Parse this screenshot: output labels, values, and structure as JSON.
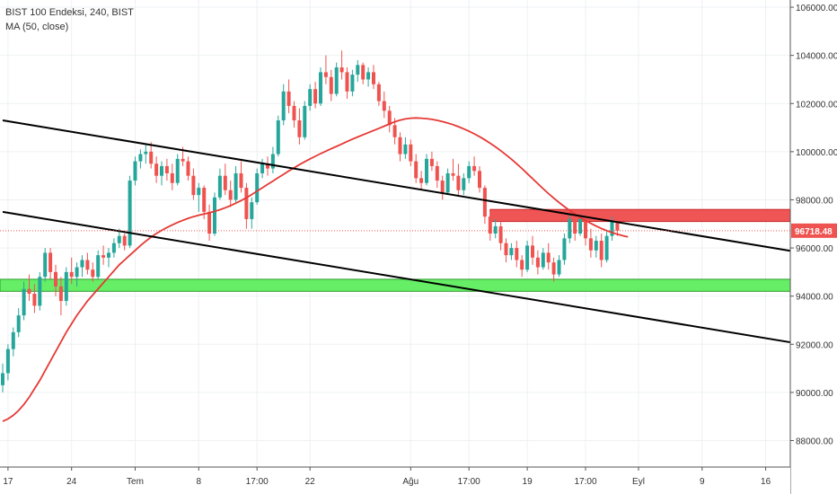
{
  "legend": {
    "symbol_line": "BIST 100 Endeksi, 240, BIST",
    "indicator_line": "MA (50, close)"
  },
  "colors": {
    "up": "#26a69a",
    "down": "#ef5350",
    "ma": "#e53935",
    "grid": "#eef0f3",
    "axis_text": "#333333",
    "price_label_bg": "#ef5350",
    "support_fill": "#66ee66",
    "resistance_fill": "#f05555",
    "trendline": "#000000"
  },
  "chart_data": {
    "type": "candlestick",
    "title": "BIST 100 Endeksi, 240, BIST",
    "y_axis": {
      "range": [
        86900,
        106300
      ],
      "ticks": [
        88000,
        90000,
        92000,
        94000,
        96000,
        98000,
        100000,
        102000,
        104000,
        106000
      ],
      "tick_labels": [
        "88000.00",
        "90000.00",
        "92000.00",
        "94000.00",
        "96000.00",
        "98000.00",
        "100000.00",
        "102000.00",
        "104000.00",
        "106000.00"
      ]
    },
    "x_axis": {
      "range": [
        0,
        118
      ],
      "ticks": [
        {
          "i": 1,
          "label": "17"
        },
        {
          "i": 13,
          "label": "24"
        },
        {
          "i": 25,
          "label": "Tem"
        },
        {
          "i": 37,
          "label": "8"
        },
        {
          "i": 48,
          "label": "17:00"
        },
        {
          "i": 58,
          "label": "22"
        },
        {
          "i": 77,
          "label": "Ağu"
        },
        {
          "i": 88,
          "label": "17:00"
        },
        {
          "i": 99,
          "label": "19"
        },
        {
          "i": 110,
          "label": "17:00"
        },
        {
          "i": 120,
          "label": "Eyl"
        },
        {
          "i": 132,
          "label": "9"
        },
        {
          "i": 144,
          "label": "16"
        }
      ]
    },
    "last_price": {
      "value": 96718.48,
      "label": "96718.48"
    },
    "ohlc": [
      [
        90300,
        91200,
        90000,
        90800
      ],
      [
        90800,
        92000,
        90500,
        91800
      ],
      [
        91800,
        92700,
        91500,
        92500
      ],
      [
        92500,
        93500,
        92300,
        93200
      ],
      [
        93200,
        94600,
        93000,
        94300
      ],
      [
        94300,
        94900,
        93800,
        94100
      ],
      [
        94100,
        94500,
        93300,
        93600
      ],
      [
        93600,
        95000,
        93400,
        94800
      ],
      [
        94800,
        96000,
        94600,
        95800
      ],
      [
        95800,
        96000,
        94700,
        95000
      ],
      [
        95000,
        95300,
        94000,
        94400
      ],
      [
        94400,
        94800,
        93200,
        93800
      ],
      [
        93800,
        95200,
        93600,
        95000
      ],
      [
        95000,
        95600,
        94500,
        94800
      ],
      [
        94800,
        95400,
        94400,
        95200
      ],
      [
        95200,
        95700,
        94800,
        95500
      ],
      [
        95500,
        95800,
        94900,
        95100
      ],
      [
        95100,
        95400,
        94600,
        94800
      ],
      [
        94800,
        95900,
        94700,
        95700
      ],
      [
        95700,
        96100,
        95300,
        95600
      ],
      [
        95600,
        96000,
        95200,
        95800
      ],
      [
        95800,
        96400,
        95600,
        96200
      ],
      [
        96200,
        96800,
        96000,
        96500
      ],
      [
        96500,
        96600,
        95900,
        96100
      ],
      [
        96100,
        99000,
        96000,
        98800
      ],
      [
        98800,
        99800,
        98600,
        99600
      ],
      [
        99600,
        100100,
        99300,
        99900
      ],
      [
        99900,
        100300,
        99500,
        100000
      ],
      [
        100000,
        100400,
        99300,
        99500
      ],
      [
        99500,
        99800,
        98700,
        99000
      ],
      [
        99000,
        99600,
        98600,
        99400
      ],
      [
        99400,
        99700,
        98800,
        99100
      ],
      [
        99100,
        99500,
        98400,
        98700
      ],
      [
        98700,
        99900,
        98600,
        99700
      ],
      [
        99700,
        100200,
        99400,
        99600
      ],
      [
        99600,
        99800,
        98800,
        99000
      ],
      [
        99000,
        99300,
        98000,
        98200
      ],
      [
        98200,
        98700,
        97500,
        98500
      ],
      [
        98500,
        98600,
        97200,
        97500
      ],
      [
        97500,
        97800,
        96300,
        96600
      ],
      [
        96600,
        98300,
        96500,
        98100
      ],
      [
        98100,
        99300,
        98000,
        99000
      ],
      [
        99000,
        99500,
        98200,
        98400
      ],
      [
        98400,
        98800,
        97700,
        98000
      ],
      [
        98000,
        99400,
        97900,
        99100
      ],
      [
        99100,
        99600,
        98300,
        98500
      ],
      [
        98500,
        98700,
        96800,
        97200
      ],
      [
        97200,
        98100,
        96800,
        97900
      ],
      [
        97900,
        99300,
        97800,
        99100
      ],
      [
        99100,
        99700,
        98900,
        99500
      ],
      [
        99500,
        99800,
        99000,
        99300
      ],
      [
        99300,
        100200,
        99100,
        99900
      ],
      [
        99900,
        101500,
        99800,
        101300
      ],
      [
        101300,
        102800,
        101100,
        102500
      ],
      [
        102500,
        103000,
        101600,
        101900
      ],
      [
        101900,
        102100,
        101000,
        101300
      ],
      [
        101300,
        101800,
        100300,
        100600
      ],
      [
        100600,
        102100,
        100500,
        101900
      ],
      [
        101900,
        102800,
        101700,
        102600
      ],
      [
        102600,
        102900,
        101800,
        102000
      ],
      [
        102000,
        103500,
        101900,
        103300
      ],
      [
        103300,
        104000,
        102800,
        103100
      ],
      [
        103100,
        103400,
        102100,
        102400
      ],
      [
        102400,
        103700,
        102300,
        103500
      ],
      [
        103500,
        104200,
        103000,
        103300
      ],
      [
        103300,
        103500,
        102200,
        102500
      ],
      [
        102500,
        103400,
        102300,
        103200
      ],
      [
        103200,
        103800,
        102900,
        103600
      ],
      [
        103600,
        103700,
        102800,
        103000
      ],
      [
        103000,
        103500,
        102700,
        103300
      ],
      [
        103300,
        103600,
        102600,
        102800
      ],
      [
        102800,
        102900,
        101900,
        102100
      ],
      [
        102100,
        102500,
        101400,
        101700
      ],
      [
        101700,
        101900,
        100800,
        101100
      ],
      [
        101100,
        101400,
        100300,
        100600
      ],
      [
        100600,
        100800,
        99600,
        99900
      ],
      [
        99900,
        100600,
        99700,
        100300
      ],
      [
        100300,
        100500,
        99400,
        99600
      ],
      [
        99600,
        99900,
        98700,
        98900
      ],
      [
        98900,
        99200,
        98400,
        98700
      ],
      [
        98700,
        99900,
        98600,
        99700
      ],
      [
        99700,
        100000,
        99200,
        99400
      ],
      [
        99400,
        99600,
        98500,
        98800
      ],
      [
        98800,
        99000,
        98000,
        98300
      ],
      [
        98300,
        99300,
        98200,
        99100
      ],
      [
        99100,
        99700,
        98800,
        99000
      ],
      [
        99000,
        99500,
        98200,
        98400
      ],
      [
        98400,
        99100,
        98200,
        98900
      ],
      [
        98900,
        99600,
        98700,
        99400
      ],
      [
        99400,
        99800,
        99000,
        99200
      ],
      [
        99200,
        99400,
        98300,
        98500
      ],
      [
        98500,
        98600,
        97000,
        97300
      ],
      [
        97300,
        97500,
        96300,
        96600
      ],
      [
        96600,
        97200,
        96400,
        96900
      ],
      [
        96900,
        97100,
        95900,
        96200
      ],
      [
        96200,
        96400,
        95400,
        95700
      ],
      [
        95700,
        96200,
        95500,
        96000
      ],
      [
        96000,
        96300,
        95200,
        95500
      ],
      [
        95500,
        95700,
        94800,
        95100
      ],
      [
        95100,
        96300,
        95000,
        96100
      ],
      [
        96100,
        96500,
        95300,
        95600
      ],
      [
        95600,
        95900,
        94900,
        95200
      ],
      [
        95200,
        96000,
        95100,
        95800
      ],
      [
        95800,
        96200,
        95100,
        95400
      ],
      [
        95400,
        95600,
        94600,
        94900
      ],
      [
        94900,
        95700,
        94800,
        95500
      ],
      [
        95500,
        96600,
        95300,
        96400
      ],
      [
        96400,
        97400,
        96200,
        97200
      ],
      [
        97200,
        97500,
        96300,
        96600
      ],
      [
        96600,
        97400,
        96500,
        97200
      ],
      [
        97200,
        97300,
        96100,
        96400
      ],
      [
        96400,
        96800,
        95600,
        95900
      ],
      [
        95900,
        96500,
        95600,
        96300
      ],
      [
        96300,
        96600,
        95200,
        95500
      ],
      [
        95500,
        96700,
        95400,
        96500
      ],
      [
        96500,
        97300,
        96300,
        97100
      ],
      [
        97100,
        97200,
        96500,
        96718
      ]
    ],
    "series": [
      {
        "name": "MA (50, close)",
        "values": [
          88800,
          88900,
          89050,
          89250,
          89500,
          89800,
          90150,
          90500,
          90900,
          91300,
          91700,
          92100,
          92500,
          92850,
          93200,
          93500,
          93800,
          94050,
          94300,
          94550,
          94800,
          95050,
          95300,
          95500,
          95700,
          95900,
          96100,
          96280,
          96450,
          96600,
          96730,
          96850,
          96960,
          97060,
          97150,
          97230,
          97300,
          97360,
          97410,
          97460,
          97520,
          97590,
          97670,
          97760,
          97860,
          97970,
          98090,
          98220,
          98360,
          98500,
          98640,
          98780,
          98920,
          99060,
          99200,
          99330,
          99460,
          99580,
          99700,
          99810,
          99920,
          100020,
          100120,
          100220,
          100320,
          100420,
          100520,
          100610,
          100700,
          100790,
          100880,
          100970,
          101060,
          101150,
          101240,
          101310,
          101360,
          101390,
          101400,
          101390,
          101370,
          101340,
          101300,
          101250,
          101190,
          101120,
          101040,
          100950,
          100850,
          100740,
          100620,
          100490,
          100350,
          100200,
          100040,
          99870,
          99690,
          99500,
          99300,
          99090,
          98880,
          98670,
          98460,
          98260,
          98070,
          97890,
          97720,
          97560,
          97410,
          97270,
          97140,
          97020,
          96910,
          96810,
          96720,
          96640,
          96570,
          96510,
          96460
        ]
      }
    ],
    "zones": [
      {
        "name": "support",
        "low": 94200,
        "high": 94700
      },
      {
        "name": "resistance",
        "low": 97100,
        "high": 97600
      }
    ],
    "trendlines": [
      {
        "from": {
          "i": 0,
          "y": 101300
        },
        "to": {
          "i": 118,
          "y": 97000
        }
      },
      {
        "from": {
          "i": 0,
          "y": 97500
        },
        "to": {
          "i": 118,
          "y": 93200
        }
      }
    ]
  }
}
